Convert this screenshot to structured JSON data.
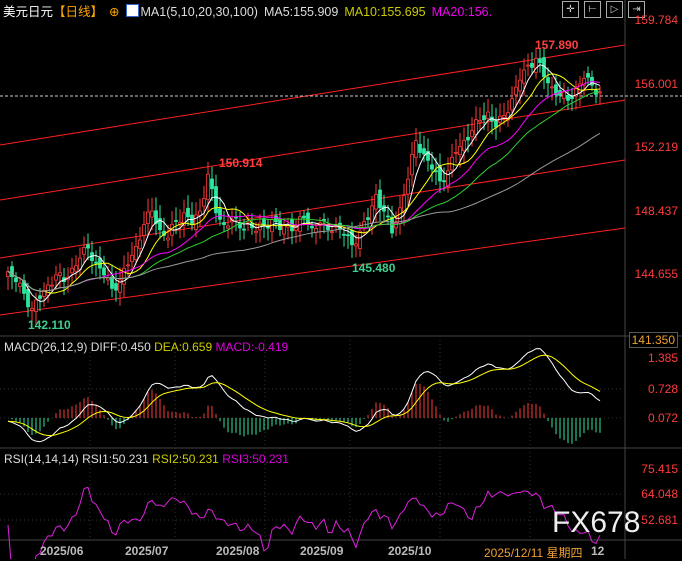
{
  "header": {
    "symbol": "美元日元",
    "period": "【日线】",
    "ma_title": "MA1(5,10,20,30,100)",
    "ma5": "MA5:155.909",
    "ma10": "MA10:155.695",
    "ma20": "MA20:156.",
    "toolbar_icons": [
      "crosshair-icon",
      "zoom-range-icon",
      "play-icon",
      "exit-icon"
    ]
  },
  "price_axis": [
    "159.784",
    "156.001",
    "152.219",
    "148.437",
    "144.655",
    "141.350"
  ],
  "annotations": {
    "high_label": "157.890",
    "mid_high_label": "150.914",
    "low_label": "142.110",
    "dip_label": "145.480"
  },
  "macd": {
    "title": "MACD(26,12,9)",
    "diff": "DIFF:0.450",
    "dea": "DEA:0.659",
    "macd": "MACD:-0.419",
    "axis": [
      "1.385",
      "0.728",
      "0.072"
    ]
  },
  "rsi": {
    "title": "RSI(14,14,14)",
    "rsi1": "RSI1:50.231",
    "rsi2": "RSI2:50.231",
    "rsi3": "RSI3:50.231",
    "axis": [
      "75.415",
      "64.048",
      "52.681"
    ]
  },
  "dates": [
    "2025/06",
    "2025/07",
    "2025/08",
    "2025/09",
    "2025/10",
    "2025/12/11 星期四",
    "12"
  ],
  "watermark": "FX678",
  "colors": {
    "up": "#ff3b3b",
    "down": "#2ee6a0",
    "ma5": "#ffffff",
    "ma10": "#ffff00",
    "ma20": "#ff00ff",
    "ma100": "#999999",
    "channel": "#ff2020"
  },
  "chart_data": {
    "type": "candlestick",
    "closes": [
      144.8,
      144.2,
      143.5,
      142.6,
      143.2,
      144.0,
      144.6,
      144.2,
      145.0,
      145.6,
      146.2,
      145.3,
      144.6,
      143.8,
      144.3,
      145.2,
      146.3,
      147.6,
      148.4,
      147.3,
      146.8,
      147.8,
      148.3,
      147.6,
      148.4,
      150.6,
      148.3,
      147.6,
      147.9,
      147.4,
      147.7,
      147.2,
      147.6,
      147.9,
      147.3,
      147.6,
      147.5,
      148.0,
      147.4,
      147.7,
      147.3,
      147.6,
      147.0,
      146.4,
      147.2,
      147.9,
      149.4,
      148.4,
      147.1,
      148.6,
      150.3,
      152.6,
      151.8,
      150.9,
      150.2,
      150.8,
      151.9,
      152.6,
      153.2,
      153.8,
      154.3,
      153.4,
      154.1,
      155.1,
      156.2,
      157.1,
      157.5,
      156.4,
      155.8,
      155.3,
      155.0,
      155.7,
      156.3,
      155.9,
      155.5
    ]
  }
}
